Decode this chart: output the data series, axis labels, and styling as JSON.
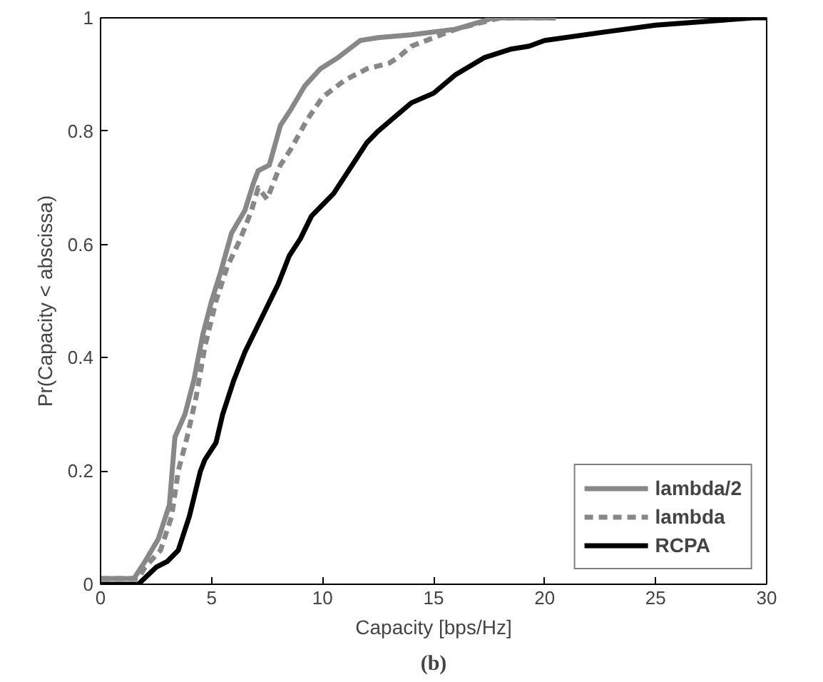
{
  "chart_data": {
    "type": "line",
    "xlabel": "Capacity [bps/Hz]",
    "ylabel": "Pr(Capacity < abscissa)",
    "annotations": [
      "(b)"
    ],
    "xlim": [
      0,
      30
    ],
    "ylim": [
      0,
      1
    ],
    "xticks": [
      0,
      5,
      10,
      15,
      20,
      25,
      30
    ],
    "yticks": [
      0,
      0.2,
      0.4,
      0.6,
      0.8,
      1
    ],
    "grid": false,
    "legend": "bottom right",
    "marker": "none",
    "series": [
      {
        "name": "lambda/2",
        "color": "#888888",
        "line_style": "solid",
        "x": [
          0,
          1.5,
          2,
          2.6,
          3.1,
          3.35,
          3.8,
          4.2,
          4.6,
          5,
          5.4,
          5.9,
          6.5,
          6.9,
          7.1,
          7.6,
          8.1,
          8.6,
          9.2,
          9.9,
          10.7,
          11.7,
          12.5,
          14,
          16,
          17.3,
          17.7,
          20.5
        ],
        "values": [
          0.01,
          0.01,
          0.04,
          0.08,
          0.14,
          0.26,
          0.3,
          0.36,
          0.44,
          0.5,
          0.55,
          0.62,
          0.66,
          0.71,
          0.73,
          0.74,
          0.81,
          0.84,
          0.88,
          0.91,
          0.93,
          0.96,
          0.965,
          0.97,
          0.98,
          0.995,
          1,
          1
        ]
      },
      {
        "name": "lambda",
        "color": "#888888",
        "line_style": "dashed",
        "x": [
          0,
          1.7,
          2,
          2.7,
          3.2,
          3.5,
          3.9,
          4.3,
          4.7,
          5.2,
          5.7,
          6.3,
          6.8,
          7.1,
          7.5,
          8.1,
          8.6,
          9.3,
          10,
          11,
          12,
          13,
          13.4,
          14,
          15,
          16,
          17,
          18,
          20.5
        ],
        "values": [
          0.01,
          0.01,
          0.03,
          0.06,
          0.12,
          0.2,
          0.26,
          0.33,
          0.42,
          0.5,
          0.56,
          0.61,
          0.66,
          0.7,
          0.68,
          0.74,
          0.77,
          0.82,
          0.86,
          0.89,
          0.91,
          0.92,
          0.93,
          0.95,
          0.965,
          0.98,
          0.99,
          1,
          1
        ]
      },
      {
        "name": "RCPA",
        "color": "#000000",
        "line_style": "solid",
        "x": [
          0,
          1.7,
          2.5,
          3,
          3.5,
          4,
          4.5,
          4.7,
          5.2,
          5.5,
          6,
          6.5,
          7,
          7.5,
          8,
          8.5,
          9,
          9.5,
          10,
          10.5,
          11,
          11.5,
          12,
          12.5,
          13.1,
          14,
          15,
          16,
          17.3,
          18.5,
          19.3,
          20,
          22.7,
          25,
          27.7,
          29.4,
          30
        ],
        "values": [
          0,
          0,
          0.03,
          0.04,
          0.06,
          0.12,
          0.2,
          0.22,
          0.25,
          0.3,
          0.36,
          0.41,
          0.45,
          0.49,
          0.53,
          0.58,
          0.61,
          0.65,
          0.67,
          0.69,
          0.72,
          0.75,
          0.78,
          0.8,
          0.82,
          0.85,
          0.867,
          0.9,
          0.93,
          0.945,
          0.95,
          0.96,
          0.975,
          0.987,
          0.995,
          1,
          1
        ]
      }
    ]
  }
}
